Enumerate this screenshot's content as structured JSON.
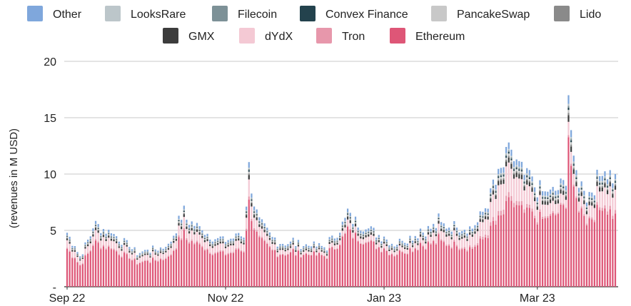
{
  "chart_data": {
    "type": "bar",
    "stacked": true,
    "ylabel": "(revenues in M USD)",
    "xlabel": "",
    "title": "",
    "ylim": [
      0,
      20
    ],
    "y_ticks": [
      {
        "value": 0,
        "label": "-"
      },
      {
        "value": 5,
        "label": "5"
      },
      {
        "value": 10,
        "label": "10"
      },
      {
        "value": 15,
        "label": "15"
      },
      {
        "value": 20,
        "label": "20"
      }
    ],
    "x_tick_labels": [
      "Sep 22",
      "Nov 22",
      "Jan 23",
      "Mar 23"
    ],
    "x_tick_dates": [
      "2022-09-01",
      "2022-11-01",
      "2023-01-01",
      "2023-03-01"
    ],
    "x_start": "2022-09-01",
    "x_end": "2023-03-31",
    "grid": true,
    "legend_position": "top",
    "legend": [
      {
        "name": "Other",
        "color": "#7fa7dc"
      },
      {
        "name": "LooksRare",
        "color": "#bcc6ca"
      },
      {
        "name": "Filecoin",
        "color": "#7d9197"
      },
      {
        "name": "Convex Finance",
        "color": "#23424d"
      },
      {
        "name": "PancakeSwap",
        "color": "#c8c8c8"
      },
      {
        "name": "Lido",
        "color": "#8a8a8a"
      },
      {
        "name": "GMX",
        "color": "#3c3c3c"
      },
      {
        "name": "dYdX",
        "color": "#f4c9d4"
      },
      {
        "name": "Tron",
        "color": "#e797ab"
      },
      {
        "name": "Ethereum",
        "color": "#de5677"
      }
    ],
    "totals_key_points": [
      {
        "date": "2022-09-01",
        "total": 4.8
      },
      {
        "date": "2022-09-06",
        "total": 2.7
      },
      {
        "date": "2022-09-12",
        "total": 5.5
      },
      {
        "date": "2022-09-20",
        "total": 4.5
      },
      {
        "date": "2022-09-28",
        "total": 3.0
      },
      {
        "date": "2022-10-10",
        "total": 3.6
      },
      {
        "date": "2022-10-15",
        "total": 6.3
      },
      {
        "date": "2022-10-22",
        "total": 5.2
      },
      {
        "date": "2022-10-30",
        "total": 4.0
      },
      {
        "date": "2022-11-08",
        "total": 4.6
      },
      {
        "date": "2022-11-10",
        "total": 10.5
      },
      {
        "date": "2022-11-13",
        "total": 6.0
      },
      {
        "date": "2022-11-20",
        "total": 4.0
      },
      {
        "date": "2022-12-10",
        "total": 3.5
      },
      {
        "date": "2022-12-18",
        "total": 6.2
      },
      {
        "date": "2023-01-05",
        "total": 3.8
      },
      {
        "date": "2023-01-22",
        "total": 5.5
      },
      {
        "date": "2023-02-05",
        "total": 5.2
      },
      {
        "date": "2023-02-12",
        "total": 8.5
      },
      {
        "date": "2023-02-18",
        "total": 11.8
      },
      {
        "date": "2023-02-25",
        "total": 9.5
      },
      {
        "date": "2023-03-05",
        "total": 8.0
      },
      {
        "date": "2023-03-12",
        "total": 9.2
      },
      {
        "date": "2023-03-13",
        "total": 17.5
      },
      {
        "date": "2023-03-15",
        "total": 10.5
      },
      {
        "date": "2023-03-20",
        "total": 8.0
      },
      {
        "date": "2023-03-27",
        "total": 10.5
      },
      {
        "date": "2023-03-31",
        "total": 9.5
      }
    ],
    "ethereum_share_key_points": [
      {
        "date": "2022-09-01",
        "share": 0.7
      },
      {
        "date": "2022-11-10",
        "share": 0.7
      },
      {
        "date": "2022-12-01",
        "share": 0.78
      },
      {
        "date": "2023-01-15",
        "share": 0.75
      },
      {
        "date": "2023-02-15",
        "share": 0.6
      },
      {
        "date": "2023-03-13",
        "share": 0.78
      },
      {
        "date": "2023-03-31",
        "share": 0.65
      }
    ]
  }
}
